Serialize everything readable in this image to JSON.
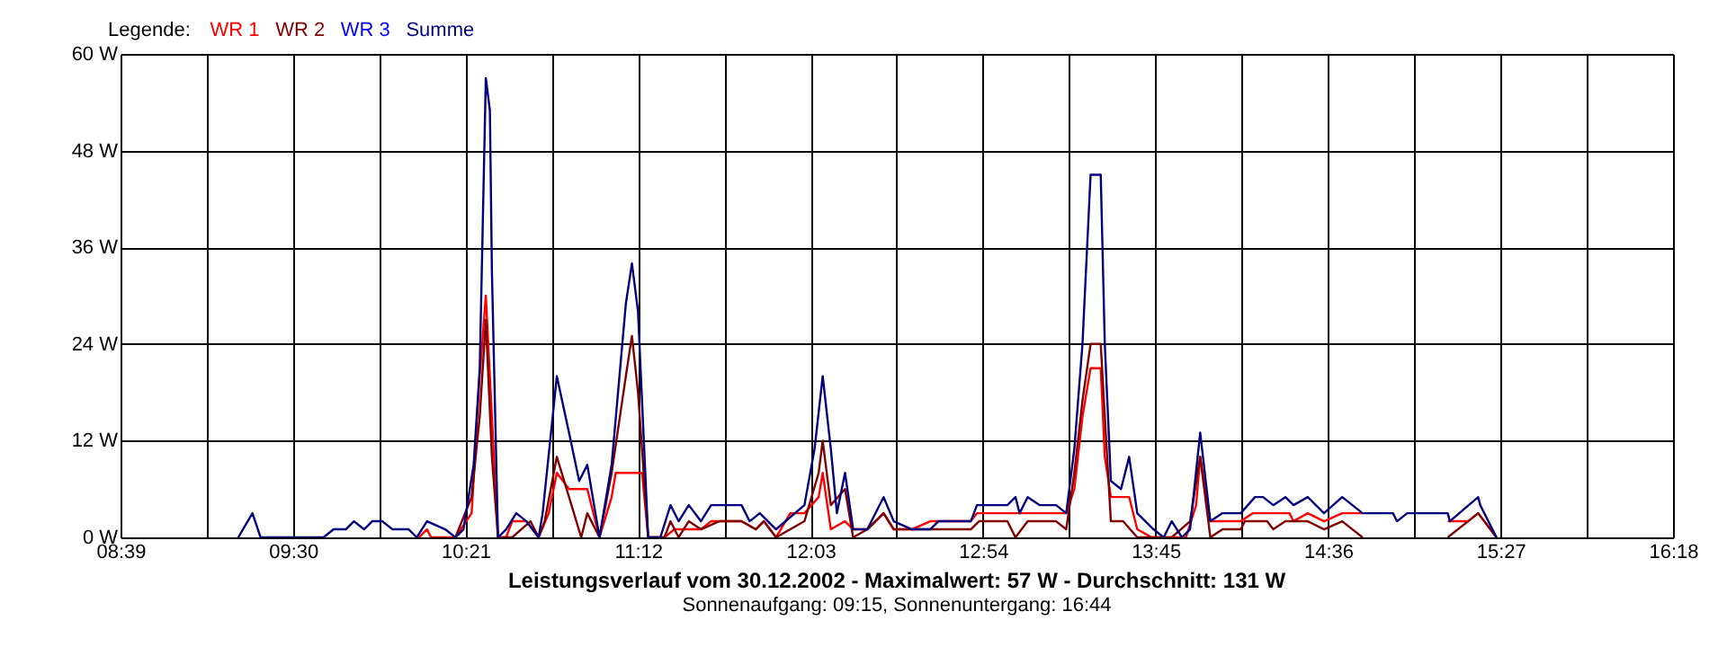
{
  "chart_data": {
    "type": "line",
    "title": "Leistungsverlauf vom 30.12.2002 - Maximalwert: 57 W - Durchschnitt: 131 W",
    "subtitle": "Sonnenaufgang: 09:15, Sonnenuntergang: 16:44",
    "legend_title": "Legende:",
    "legend": "top left",
    "grid": true,
    "marker": "none",
    "line_style": "solid",
    "xlim": [
      8.65,
      16.3
    ],
    "xticks": [
      {
        "value": 8.65,
        "label": "08:39"
      },
      {
        "value": 9.075,
        "label": null
      },
      {
        "value": 9.5,
        "label": "09:30"
      },
      {
        "value": 9.925,
        "label": null
      },
      {
        "value": 10.35,
        "label": "10:21"
      },
      {
        "value": 10.775,
        "label": null
      },
      {
        "value": 11.2,
        "label": "11:12"
      },
      {
        "value": 11.625,
        "label": null
      },
      {
        "value": 12.05,
        "label": "12:03"
      },
      {
        "value": 12.475,
        "label": null
      },
      {
        "value": 12.9,
        "label": "12:54"
      },
      {
        "value": 13.325,
        "label": null
      },
      {
        "value": 13.75,
        "label": "13:45"
      },
      {
        "value": 14.175,
        "label": null
      },
      {
        "value": 14.6,
        "label": "14:36"
      },
      {
        "value": 15.025,
        "label": null
      },
      {
        "value": 15.45,
        "label": "15:27"
      },
      {
        "value": 15.875,
        "label": null
      },
      {
        "value": 16.3,
        "label": "16:18"
      }
    ],
    "ylim": [
      0,
      60
    ],
    "yticks": [
      {
        "value": 0,
        "label": "0 W"
      },
      {
        "value": 12,
        "label": "12 W"
      },
      {
        "value": 24,
        "label": "24 W"
      },
      {
        "value": 36,
        "label": "36 W"
      },
      {
        "value": 48,
        "label": "48 W"
      },
      {
        "value": 60,
        "label": "60 W"
      }
    ],
    "series": [
      {
        "name": "WR 1",
        "color": "#ff0000",
        "x": [
          10.12,
          10.16,
          10.18,
          10.3,
          10.38,
          10.42,
          10.45,
          10.48,
          10.51,
          10.55,
          10.58,
          10.65,
          10.71,
          10.76,
          10.8,
          10.86,
          10.95,
          11.01,
          11.07,
          11.09,
          11.22,
          11.25,
          11.33,
          11.38,
          11.51,
          11.56,
          11.71,
          11.78,
          11.82,
          11.88,
          11.95,
          12.02,
          12.09,
          12.11,
          12.15,
          12.22,
          12.26,
          12.33,
          12.41,
          12.46,
          12.55,
          12.64,
          12.84,
          12.87,
          13.26,
          13.31,
          13.35,
          13.39,
          13.43,
          13.48,
          13.5,
          13.53,
          13.62,
          13.66,
          13.73,
          13.9,
          13.95,
          13.97,
          14.02,
          14.17,
          14.23,
          14.41,
          14.43,
          14.5,
          14.58,
          14.67,
          14.77,
          14.9,
          15.19,
          15.29,
          15.34,
          15.43
        ],
        "values": [
          0,
          1,
          0,
          0,
          3,
          20,
          30,
          15,
          0,
          0,
          2,
          2,
          0,
          3,
          8,
          6,
          6,
          0,
          5,
          8,
          8,
          0,
          0,
          1,
          1,
          2,
          2,
          1,
          2,
          0,
          3,
          3,
          5,
          8,
          1,
          2,
          1,
          1,
          3,
          1,
          1,
          2,
          2,
          3,
          3,
          3,
          6,
          15,
          21,
          21,
          10,
          5,
          5,
          1,
          0,
          0,
          4,
          10,
          2,
          2,
          3,
          3,
          2,
          3,
          2,
          3,
          3,
          null,
          2,
          2,
          3,
          0
        ]
      },
      {
        "name": "WR 2",
        "color": "#800000",
        "x": [
          10.3,
          10.38,
          10.42,
          10.45,
          10.48,
          10.51,
          10.58,
          10.67,
          10.71,
          10.74,
          10.8,
          10.86,
          10.92,
          10.95,
          11.01,
          11.07,
          11.14,
          11.17,
          11.2,
          11.25,
          11.33,
          11.36,
          11.4,
          11.45,
          11.51,
          11.6,
          11.71,
          11.78,
          11.82,
          11.88,
          12.02,
          12.09,
          12.11,
          12.15,
          12.22,
          12.26,
          12.33,
          12.41,
          12.46,
          12.84,
          12.88,
          13.02,
          13.06,
          13.12,
          13.26,
          13.31,
          13.35,
          13.39,
          13.43,
          13.48,
          13.5,
          13.53,
          13.59,
          13.66,
          13.83,
          13.92,
          13.97,
          14.02,
          14.08,
          14.17,
          14.19,
          14.3,
          14.33,
          14.39,
          14.5,
          14.58,
          14.67,
          14.77,
          14.9,
          15.19,
          15.34,
          15.43
        ],
        "values": [
          0,
          5,
          15,
          27,
          10,
          0,
          0,
          2,
          0,
          2,
          10,
          5,
          0,
          3,
          0,
          8,
          20,
          25,
          18,
          0,
          0,
          2,
          0,
          2,
          1,
          2,
          2,
          1,
          2,
          0,
          2,
          8,
          12,
          4,
          6,
          0,
          1,
          3,
          1,
          1,
          2,
          2,
          0,
          2,
          2,
          1,
          8,
          17,
          24,
          24,
          15,
          2,
          2,
          0,
          0,
          2,
          10,
          0,
          1,
          1,
          2,
          2,
          1,
          2,
          2,
          1,
          2,
          0,
          null,
          0,
          3,
          0
        ]
      },
      {
        "name": "WR 3",
        "color": "#0000ff"
      },
      {
        "name": "Summe",
        "color": "#000080",
        "x": [
          9.23,
          9.3,
          9.34,
          9.65,
          9.7,
          9.76,
          9.8,
          9.85,
          9.89,
          9.94,
          9.99,
          10.07,
          10.11,
          10.16,
          10.25,
          10.3,
          10.34,
          10.39,
          10.42,
          10.45,
          10.47,
          10.48,
          10.51,
          10.55,
          10.6,
          10.65,
          10.71,
          10.73,
          10.8,
          10.86,
          10.91,
          10.95,
          11.01,
          11.07,
          11.14,
          11.17,
          11.2,
          11.25,
          11.31,
          11.36,
          11.4,
          11.45,
          11.51,
          11.56,
          11.71,
          11.75,
          11.8,
          11.88,
          12.02,
          12.07,
          12.11,
          12.15,
          12.18,
          12.22,
          12.26,
          12.33,
          12.41,
          12.46,
          12.55,
          12.64,
          12.68,
          12.84,
          12.87,
          13.02,
          13.06,
          13.08,
          13.12,
          13.18,
          13.26,
          13.31,
          13.35,
          13.39,
          13.43,
          13.48,
          13.5,
          13.53,
          13.58,
          13.62,
          13.66,
          13.74,
          13.79,
          13.83,
          13.88,
          13.92,
          13.97,
          14.02,
          14.08,
          14.17,
          14.24,
          14.28,
          14.33,
          14.39,
          14.43,
          14.5,
          14.58,
          14.67,
          14.77,
          14.92,
          14.94,
          14.99,
          15.19,
          15.2,
          15.34,
          15.35,
          15.43
        ],
        "values": [
          0,
          3,
          0,
          0,
          1,
          1,
          2,
          1,
          2,
          2,
          1,
          1,
          0,
          2,
          1,
          0,
          1,
          9,
          21,
          57,
          53,
          33,
          0,
          1,
          3,
          2,
          0,
          3,
          20,
          13,
          7,
          9,
          0,
          9,
          29,
          34,
          28,
          0,
          0,
          4,
          2,
          4,
          2,
          4,
          4,
          2,
          3,
          1,
          4,
          11,
          20,
          11,
          3,
          8,
          1,
          1,
          5,
          2,
          1,
          1,
          2,
          2,
          4,
          4,
          5,
          3,
          5,
          4,
          4,
          3,
          11,
          24,
          45,
          45,
          24,
          7,
          6,
          10,
          3,
          1,
          0,
          2,
          0,
          1,
          13,
          2,
          3,
          3,
          5,
          5,
          4,
          5,
          4,
          5,
          3,
          5,
          3,
          3,
          2,
          3,
          3,
          2,
          5,
          4,
          0
        ]
      }
    ]
  }
}
